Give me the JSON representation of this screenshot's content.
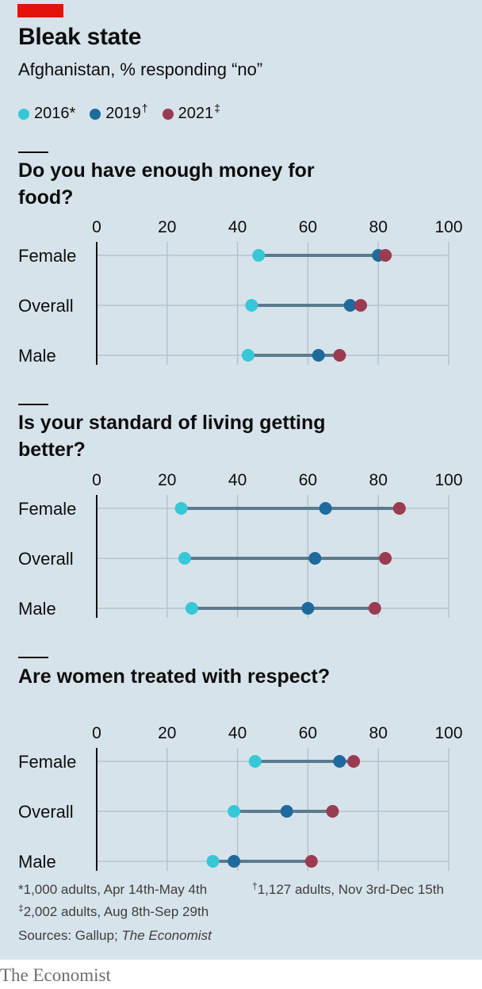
{
  "header": {
    "title": "Bleak state",
    "subtitle": "Afghanistan, % responding “no”"
  },
  "legend": [
    {
      "label": "2016",
      "mark": "*",
      "color": "#37c8d7"
    },
    {
      "label": "2019",
      "mark": "†",
      "color": "#1f6a9d"
    },
    {
      "label": "2021",
      "mark": "‡",
      "color": "#9b3b51"
    }
  ],
  "colors": {
    "connector": "#5c7a8e",
    "grid": "#b3c4ce",
    "axis": "#0d0d0d",
    "background": "#d7e3ea",
    "accent": "#e3120b"
  },
  "chart_data": [
    {
      "type": "dot-range",
      "title": "Do you have enough money for food?",
      "categories": [
        "Female",
        "Overall",
        "Male"
      ],
      "xlim": [
        0,
        100
      ],
      "xticks": [
        "0",
        "20",
        "40",
        "60",
        "80",
        "100"
      ],
      "series": [
        {
          "name": "2016",
          "values": [
            46,
            44,
            43
          ]
        },
        {
          "name": "2019",
          "values": [
            80,
            72,
            63
          ]
        },
        {
          "name": "2021",
          "values": [
            82,
            75,
            69
          ]
        }
      ]
    },
    {
      "type": "dot-range",
      "title": "Is your standard of living getting better?",
      "categories": [
        "Female",
        "Overall",
        "Male"
      ],
      "xlim": [
        0,
        100
      ],
      "xticks": [
        "0",
        "20",
        "40",
        "60",
        "80",
        "100"
      ],
      "series": [
        {
          "name": "2016",
          "values": [
            24,
            25,
            27
          ]
        },
        {
          "name": "2019",
          "values": [
            65,
            62,
            60
          ]
        },
        {
          "name": "2021",
          "values": [
            86,
            82,
            79
          ]
        }
      ]
    },
    {
      "type": "dot-range",
      "title": "Are women treated with respect?",
      "categories": [
        "Female",
        "Overall",
        "Male"
      ],
      "xlim": [
        0,
        100
      ],
      "xticks": [
        "0",
        "20",
        "40",
        "60",
        "80",
        "100"
      ],
      "series": [
        {
          "name": "2016",
          "values": [
            45,
            39,
            33
          ]
        },
        {
          "name": "2019",
          "values": [
            69,
            54,
            39
          ]
        },
        {
          "name": "2021",
          "values": [
            73,
            67,
            61
          ]
        }
      ]
    }
  ],
  "footnotes": {
    "f2016": {
      "mark": "*",
      "text": "1,000 adults, Apr 14th-May 4th"
    },
    "f2019": {
      "mark": "†",
      "text": "1,127 adults, Nov 3rd-Dec 15th"
    },
    "f2021": {
      "mark": "‡",
      "text": "2,002 adults, Aug 8th-Sep 29th"
    }
  },
  "source": {
    "prefix": "Sources: Gallup; ",
    "italic": "The Economist"
  },
  "brand": "The Economist"
}
